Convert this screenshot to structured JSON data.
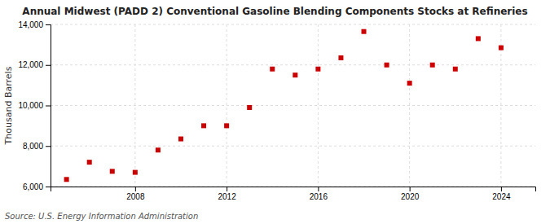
{
  "chart_data": {
    "type": "scatter",
    "title": "Annual Midwest (PADD 2) Conventional Gasoline Blending Components Stocks at Refineries",
    "ylabel": "Thousand Barrels",
    "source": "Source: U.S. Energy Information Administration",
    "x": [
      2005,
      2006,
      2007,
      2008,
      2009,
      2010,
      2011,
      2012,
      2013,
      2014,
      2015,
      2016,
      2017,
      2018,
      2019,
      2020,
      2021,
      2022,
      2023,
      2024
    ],
    "values": [
      6350,
      7200,
      6750,
      6700,
      7800,
      8350,
      9000,
      9000,
      9900,
      11800,
      11500,
      11800,
      12350,
      13650,
      12000,
      11100,
      12000,
      11800,
      13300,
      12850
    ],
    "color": "#cc0000",
    "marker": "square",
    "xlim": [
      2004.3,
      2025.5
    ],
    "ylim": [
      6000,
      14000
    ],
    "xticks": [
      2008,
      2012,
      2016,
      2020,
      2024
    ],
    "yticks": [
      {
        "value": 6000,
        "label": "6,000"
      },
      {
        "value": 8000,
        "label": "8,000"
      },
      {
        "value": 10000,
        "label": "10,000"
      },
      {
        "value": 12000,
        "label": "12,000"
      },
      {
        "value": 14000,
        "label": "14,000"
      }
    ],
    "grid": true
  }
}
